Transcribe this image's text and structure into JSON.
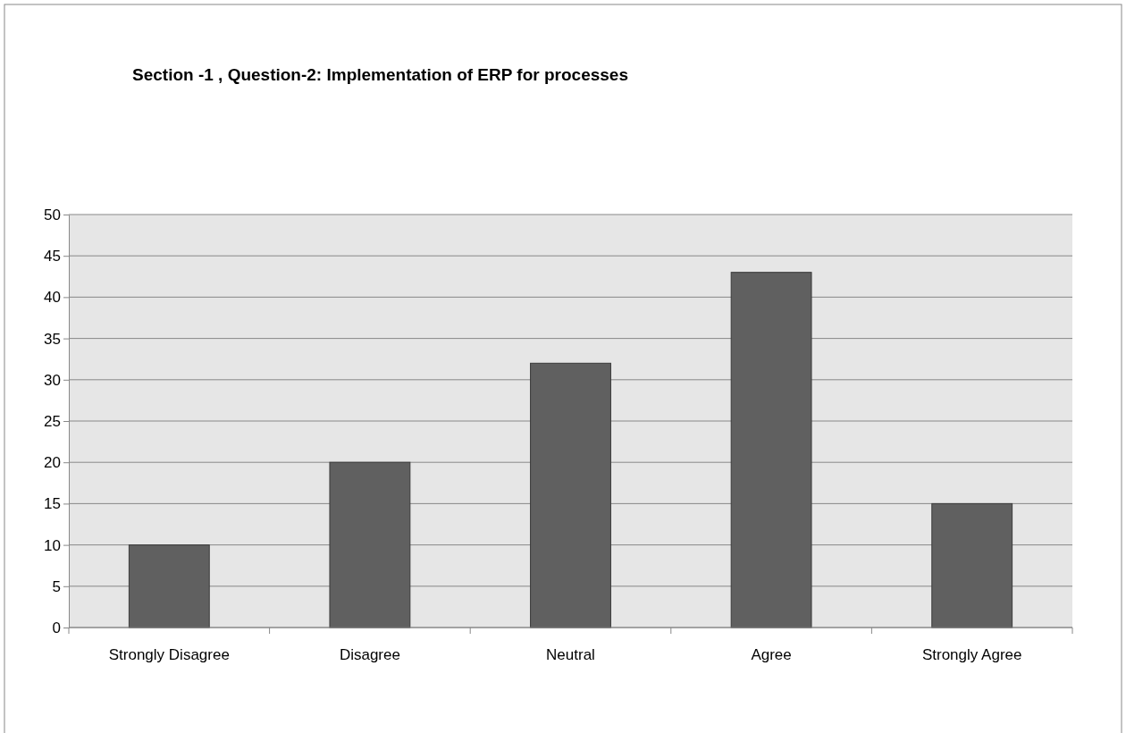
{
  "chart_data": {
    "type": "bar",
    "title": "Section -1 , Question-2: Implementation of ERP for processes",
    "categories": [
      "Strongly Disagree",
      "Disagree",
      "Neutral",
      "Agree",
      "Strongly Agree"
    ],
    "values": [
      10,
      20,
      32,
      43,
      15
    ],
    "color": "#606060",
    "ylim": [
      0,
      50
    ],
    "yticks": [
      0,
      5,
      10,
      15,
      20,
      25,
      30,
      35,
      40,
      45,
      50
    ],
    "grid": "y"
  }
}
